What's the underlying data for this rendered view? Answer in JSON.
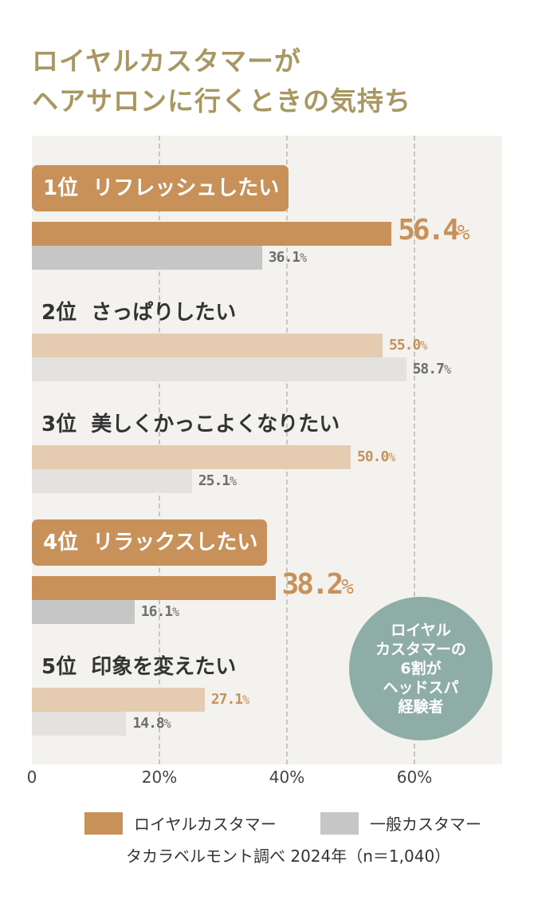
{
  "chart_data": {
    "type": "bar",
    "orientation": "horizontal",
    "title": [
      "ロイヤルカスタマーが",
      "ヘアサロンに行くときの気持ち"
    ],
    "categories": [
      {
        "rank": "1位",
        "label": "リフレッシュしたい",
        "highlight": true
      },
      {
        "rank": "2位",
        "label": "さっぱりしたい",
        "highlight": false
      },
      {
        "rank": "3位",
        "label": "美しくかっこよくなりたい",
        "highlight": false
      },
      {
        "rank": "4位",
        "label": "リラックスしたい",
        "highlight": true
      },
      {
        "rank": "5位",
        "label": "印象を変えたい",
        "highlight": false
      }
    ],
    "series": [
      {
        "name": "ロイヤルカスタマー",
        "values": [
          56.4,
          55.0,
          50.0,
          38.2,
          27.1
        ],
        "labels": [
          "56.4",
          "55.0",
          "50.0",
          "38.2",
          "27.1"
        ],
        "color": "#C8915A",
        "light_color": "#E5CCB0"
      },
      {
        "name": "一般カスタマー",
        "values": [
          36.1,
          58.7,
          25.1,
          16.1,
          14.8
        ],
        "labels": [
          "36.1",
          "58.7",
          "25.1",
          "16.1",
          "14.8"
        ],
        "color": "#C6C6C6",
        "light_color": "#E4E2DE"
      }
    ],
    "unit": "%",
    "xlim": [
      0,
      73.75
    ],
    "xticks": [
      "0",
      "20%",
      "40%",
      "60%"
    ],
    "xtick_values": [
      0,
      20,
      40,
      60
    ],
    "grid": true,
    "legend": "bottom-right",
    "annotation": [
      "ロイヤル",
      "カスタマーの",
      "6割が",
      "ヘッドスパ",
      "経験者"
    ],
    "annotation_color": "#8DADA6",
    "source": "タカラベルモント調べ 2024年（n＝1,040）"
  }
}
